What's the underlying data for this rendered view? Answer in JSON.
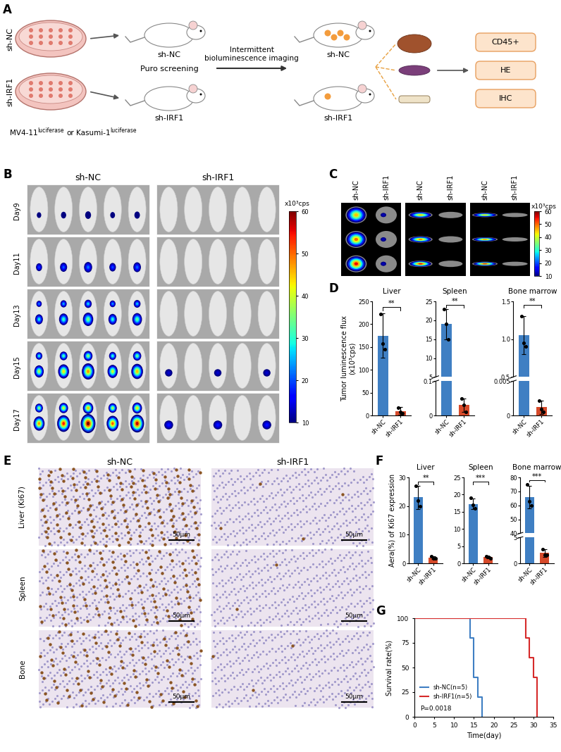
{
  "panel_labels": [
    "A",
    "B",
    "C",
    "D",
    "E",
    "F",
    "G"
  ],
  "schematic": {
    "groups": [
      "sh-NC",
      "sh-IRF1"
    ],
    "cell_lines": [
      {
        "name": "MV4-11",
        "superscript": "luciferase"
      },
      {
        "name": "Kasumi-1",
        "superscript": "luciferase"
      }
    ],
    "connector": "or",
    "steps": [
      "Puro screening",
      "Intermittent\nbioluminescence imaging"
    ],
    "assays": [
      "CD45+",
      "HE",
      "IHC"
    ]
  },
  "imaging": {
    "groups": [
      "sh-NC",
      "sh-IRF1"
    ],
    "days": [
      "Day9",
      "Day11",
      "Day13",
      "Day15",
      "Day17"
    ],
    "mice_per_group": 5,
    "colorbar": {
      "label": "x10³cps",
      "range": [
        10,
        60
      ],
      "ticks": [
        10,
        20,
        30,
        40,
        50,
        60
      ]
    }
  },
  "ex_vivo": {
    "groups": [
      "sh-NC",
      "sh-IRF1"
    ],
    "organs": 3,
    "samples_per_group": 3,
    "colorbar": {
      "label": "x10³cps",
      "range": [
        10,
        60
      ],
      "ticks": [
        10,
        20,
        30,
        40,
        50,
        60
      ]
    }
  },
  "ihc": {
    "groups": [
      "sh-NC",
      "sh-IRF1"
    ],
    "rows": [
      "Liver (Ki67)",
      "Spleen",
      "Bone"
    ],
    "scale_bar": "50μm"
  },
  "chart_data": [
    {
      "type": "bar",
      "title": "Liver",
      "ylabel": "Tumor luminescence flux\n(x10³cps)",
      "categories": [
        "sh-NC",
        "sh-IRF1"
      ],
      "values": [
        175,
        10
      ],
      "errors": [
        48,
        8
      ],
      "points": [
        [
          222,
          158,
          145
        ],
        [
          17,
          8,
          5
        ]
      ],
      "colors": [
        "#3f7fc3",
        "#d64a2a"
      ],
      "ylim": [
        0,
        250
      ],
      "yticks": [
        0,
        50,
        100,
        150,
        200,
        250
      ],
      "significance": "**"
    },
    {
      "type": "bar",
      "title": "Spleen",
      "categories": [
        "sh-NC",
        "sh-IRF1"
      ],
      "values": [
        19,
        0.03
      ],
      "errors": [
        4,
        0.02
      ],
      "points": [
        [
          23,
          19,
          15
        ],
        [
          0.05,
          0.03,
          0.01
        ]
      ],
      "colors": [
        "#3f7fc3",
        "#d64a2a"
      ],
      "segments": [
        {
          "ylim": [
            0,
            0.1
          ],
          "yticks": [
            0,
            0.1
          ]
        },
        {
          "ylim": [
            5,
            25
          ],
          "yticks": [
            5,
            10,
            15,
            20,
            25
          ]
        }
      ],
      "significance": "**"
    },
    {
      "type": "bar",
      "title": "Bone marrow",
      "categories": [
        "sh-NC",
        "sh-IRF1"
      ],
      "values": [
        1.05,
        0.0012
      ],
      "errors": [
        0.25,
        0.001
      ],
      "points": [
        [
          1.3,
          0.95,
          0.9
        ],
        [
          0.0022,
          0.0009,
          0.0005
        ]
      ],
      "colors": [
        "#3f7fc3",
        "#d64a2a"
      ],
      "segments": [
        {
          "ylim": [
            0,
            0.005
          ],
          "yticks": [
            0,
            0.005
          ]
        },
        {
          "ylim": [
            0.5,
            1.5
          ],
          "yticks": [
            0.5,
            1.0,
            1.5
          ]
        }
      ],
      "significance": "**"
    },
    {
      "type": "bar",
      "title": "Liver",
      "ylabel": "Aera(%) of Ki67 expression",
      "categories": [
        "sh-NC",
        "sh-IRF1"
      ],
      "values": [
        23,
        2
      ],
      "errors": [
        4,
        0.5
      ],
      "points": [
        [
          27,
          22,
          20
        ],
        [
          2.5,
          1.8,
          1.7
        ]
      ],
      "colors": [
        "#3f7fc3",
        "#d64a2a"
      ],
      "ylim": [
        0,
        30
      ],
      "yticks": [
        0,
        10,
        20,
        30
      ],
      "significance": "**"
    },
    {
      "type": "bar",
      "title": "Spleen",
      "categories": [
        "sh-NC",
        "sh-IRF1"
      ],
      "values": [
        17.3,
        1.8
      ],
      "errors": [
        1.5,
        0.3
      ],
      "points": [
        [
          19,
          17,
          16
        ],
        [
          2.1,
          1.8,
          1.5
        ]
      ],
      "colors": [
        "#3f7fc3",
        "#d64a2a"
      ],
      "ylim": [
        0,
        25
      ],
      "yticks": [
        0,
        5,
        10,
        15,
        20,
        25
      ],
      "significance": "***"
    },
    {
      "type": "bar",
      "title": "Bone marrow",
      "categories": [
        "sh-NC",
        "sh-IRF1"
      ],
      "values": [
        66,
        2
      ],
      "errors": [
        8,
        0.8
      ],
      "points": [
        [
          75,
          63,
          60
        ],
        [
          2.8,
          1.6,
          1.6
        ]
      ],
      "colors": [
        "#3f7fc3",
        "#d64a2a"
      ],
      "segments": [
        {
          "ylim": [
            0,
            5
          ],
          "yticks": [
            0,
            5
          ]
        },
        {
          "ylim": [
            40,
            80
          ],
          "yticks": [
            40,
            50,
            60,
            70,
            80
          ]
        }
      ],
      "significance": "***"
    },
    {
      "type": "line",
      "line_style": "steps",
      "xlabel": "Time(day)",
      "ylabel": "Survival rate(%)",
      "series": [
        {
          "name": "sh-NC(n=5)",
          "color": "#3f7fc3",
          "x": [
            0,
            14,
            15,
            16,
            17
          ],
          "values": [
            100,
            80,
            40,
            20,
            0
          ]
        },
        {
          "name": "sh-IRF1(n=5)",
          "color": "#d62a2a",
          "x": [
            0,
            28,
            29,
            30,
            31
          ],
          "values": [
            100,
            80,
            60,
            40,
            0
          ]
        }
      ],
      "xlim": [
        0,
        35
      ],
      "xticks": [
        0,
        5,
        10,
        15,
        20,
        25,
        30,
        35
      ],
      "ylim": [
        0,
        100
      ],
      "yticks": [
        0,
        25,
        50,
        75,
        100
      ],
      "legend": "lower left",
      "annotation": "P=0.0018"
    }
  ]
}
